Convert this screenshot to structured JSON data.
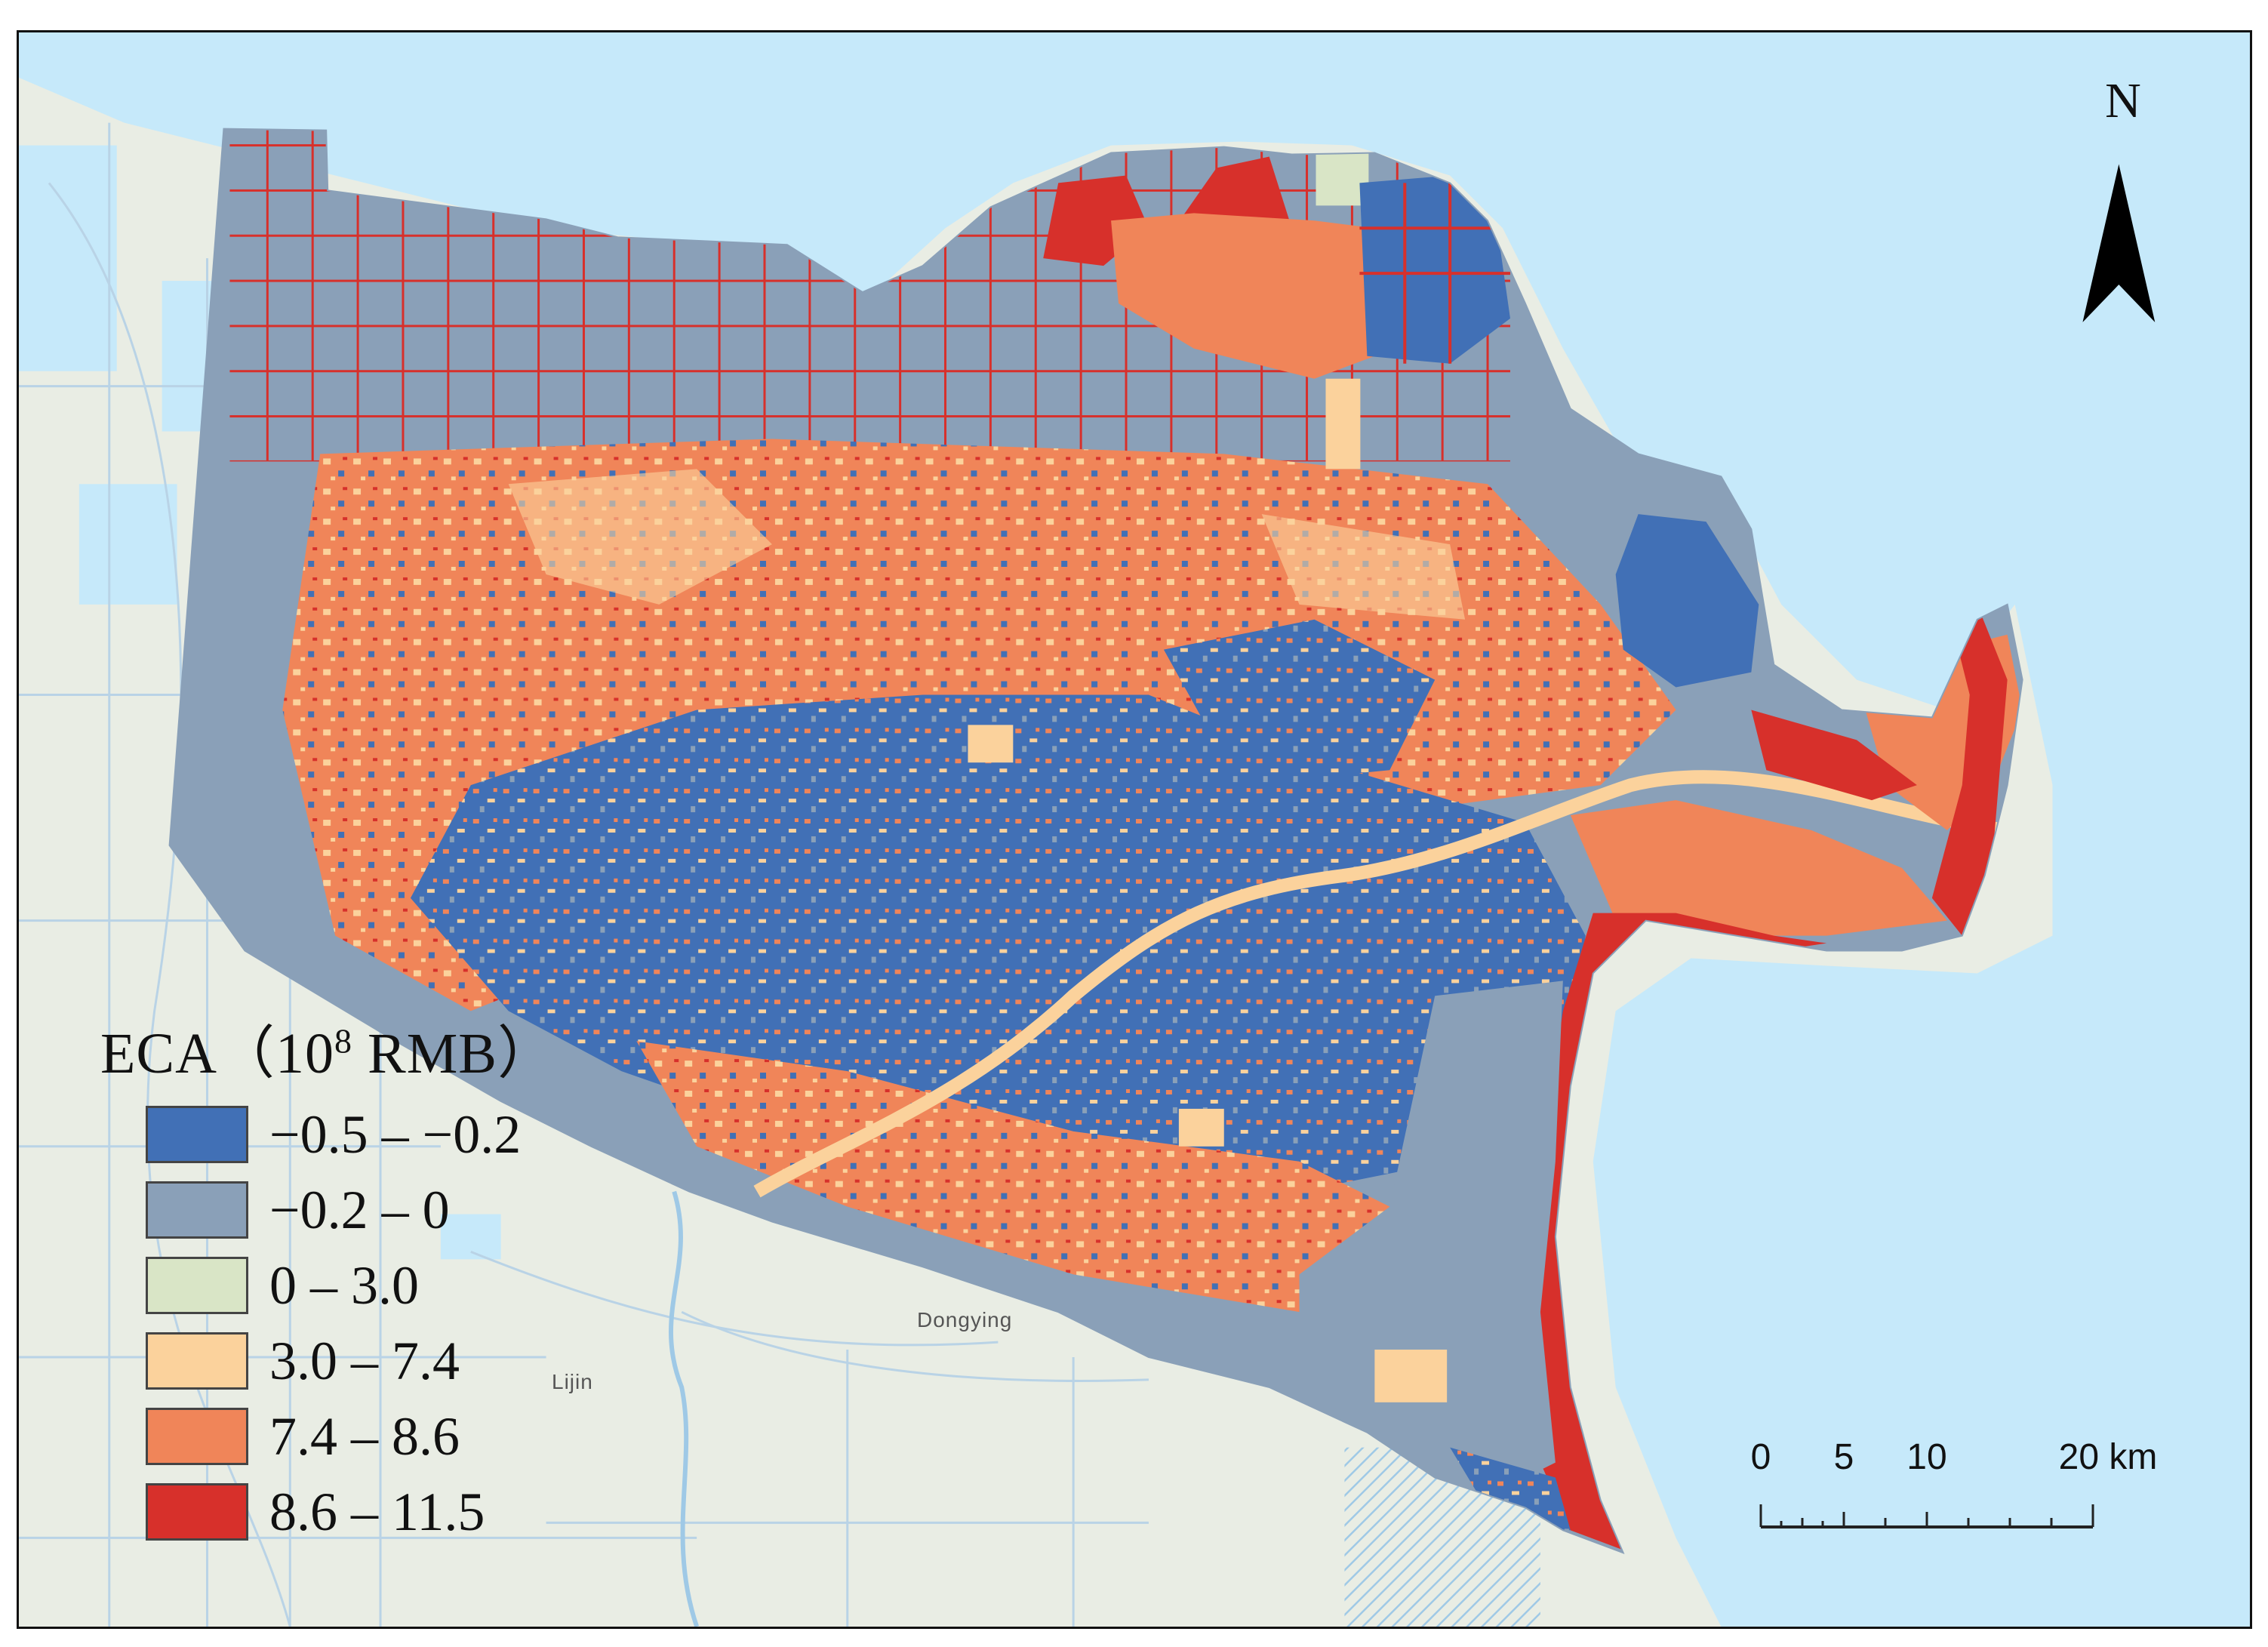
{
  "map": {
    "place_labels": [
      {
        "name": "dongying-label",
        "text": "Dongying"
      },
      {
        "name": "lijin-label",
        "text": "Lijin"
      }
    ],
    "colors": {
      "sea": "#c6e9fa",
      "land": "#e9ede4",
      "road": "#b9d3e6",
      "class_1": "#4170b6",
      "class_2": "#8aa0b8",
      "class_3": "#d9e5c6",
      "class_4": "#fbd29c",
      "class_5": "#f08559",
      "class_6": "#d7302b"
    }
  },
  "legend": {
    "title_prefix": "ECA（10",
    "title_sup": "8",
    "title_suffix": " RMB）",
    "items": [
      {
        "label": "−0.5 – −0.2",
        "color": "#4170b6"
      },
      {
        "label": "−0.2 – 0",
        "color": "#8aa0b8"
      },
      {
        "label": "0 – 3.0",
        "color": "#d9e5c6"
      },
      {
        "label": "3.0 – 7.4",
        "color": "#fbd29c"
      },
      {
        "label": "7.4 – 8.6",
        "color": "#f08559"
      },
      {
        "label": "8.6 – 11.5",
        "color": "#d7302b"
      }
    ]
  },
  "north_arrow": {
    "label": "N"
  },
  "scale_bar": {
    "labels": [
      "0",
      "5",
      "10",
      "20 km"
    ],
    "values_km": [
      0,
      5,
      10,
      20
    ]
  }
}
